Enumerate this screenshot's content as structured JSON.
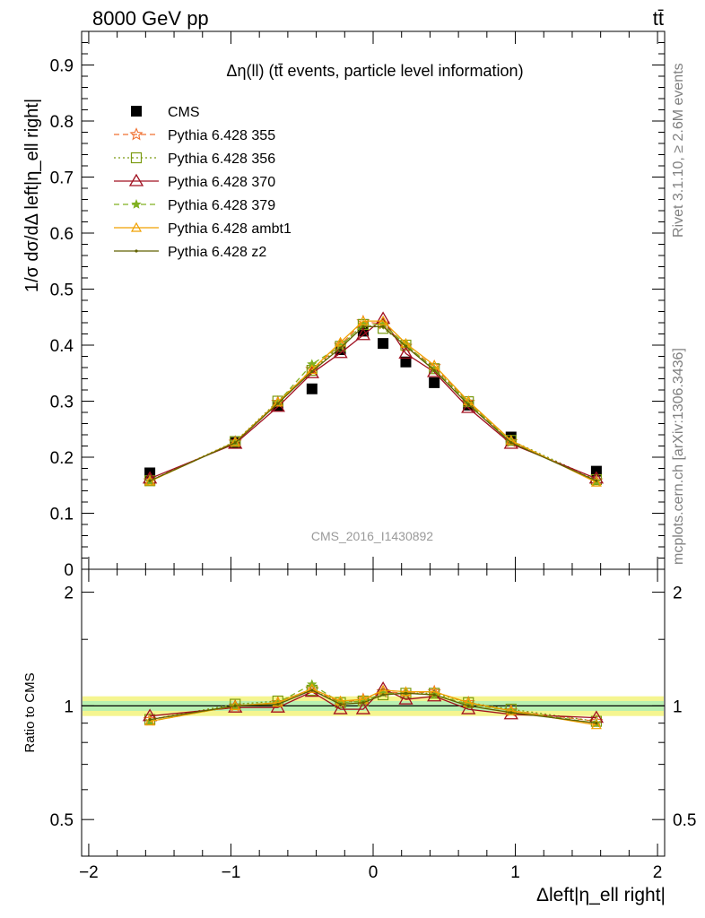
{
  "header": {
    "energy_label": "8000 GeV pp",
    "process_label": "tt̄"
  },
  "side_labels": {
    "rivet": "Rivet 3.1.10, ≥ 2.6M events",
    "source": "mcplots.cern.ch [arXiv:1306.3436]"
  },
  "chart_data": [
    {
      "type": "line",
      "panel": "main",
      "title": "Δη(ll) (tt̄ events, particle level information)",
      "ylabel": "1/σ dσ/dΔ left|η_ell right|",
      "xlabel": "",
      "watermark": "CMS_2016_I1430892",
      "xlim": [
        -2.05,
        2.05
      ],
      "ylim": [
        0,
        0.96
      ],
      "yticks": [
        0,
        0.1,
        0.2,
        0.3,
        0.4,
        0.5,
        0.6,
        0.7,
        0.8,
        0.9
      ],
      "ytick_labels": [
        "0",
        "0.1",
        "0.2",
        "0.3",
        "0.4",
        "0.5",
        "0.6",
        "0.7",
        "0.8",
        "0.9"
      ],
      "x": [
        -1.57,
        -0.97,
        -0.67,
        -0.43,
        -0.23,
        -0.07,
        0.07,
        0.23,
        0.43,
        0.67,
        0.97,
        1.57
      ],
      "series": [
        {
          "name": "CMS",
          "color": "#000000",
          "style": "data",
          "marker": "square",
          "values": [
            0.172,
            0.226,
            0.292,
            0.322,
            0.392,
            0.425,
            0.403,
            0.37,
            0.333,
            0.293,
            0.236,
            0.175
          ]
        },
        {
          "name": "Pythia 6.428 355",
          "color": "#f07030",
          "style": "dashed",
          "marker": "star",
          "values": [
            0.158,
            0.227,
            0.298,
            0.357,
            0.4,
            0.442,
            0.438,
            0.398,
            0.362,
            0.298,
            0.228,
            0.158
          ]
        },
        {
          "name": "Pythia 6.428 356",
          "color": "#7a9a10",
          "style": "dotted",
          "marker": "open-square",
          "values": [
            0.158,
            0.228,
            0.3,
            0.355,
            0.398,
            0.437,
            0.43,
            0.4,
            0.358,
            0.299,
            0.23,
            0.16
          ]
        },
        {
          "name": "Pythia 6.428 370",
          "color": "#a01020",
          "style": "solid",
          "marker": "open-triangle",
          "values": [
            0.162,
            0.224,
            0.29,
            0.35,
            0.386,
            0.418,
            0.447,
            0.385,
            0.352,
            0.288,
            0.224,
            0.162
          ]
        },
        {
          "name": "Pythia 6.428 379",
          "color": "#80b020",
          "style": "dashed",
          "marker": "small-star",
          "values": [
            0.157,
            0.227,
            0.298,
            0.366,
            0.398,
            0.437,
            0.437,
            0.401,
            0.357,
            0.296,
            0.228,
            0.157
          ]
        },
        {
          "name": "Pythia 6.428 ambt1",
          "color": "#f0a000",
          "style": "solid",
          "marker": "open-triangle-small",
          "values": [
            0.157,
            0.227,
            0.298,
            0.356,
            0.405,
            0.443,
            0.443,
            0.403,
            0.364,
            0.3,
            0.23,
            0.155
          ]
        },
        {
          "name": "Pythia 6.428 z2",
          "color": "#606000",
          "style": "solid",
          "marker": "dot",
          "values": [
            0.158,
            0.226,
            0.296,
            0.353,
            0.395,
            0.433,
            0.433,
            0.398,
            0.355,
            0.294,
            0.226,
            0.158
          ]
        }
      ]
    },
    {
      "type": "line",
      "panel": "ratio",
      "ylabel": "Ratio to CMS",
      "xlabel": "Δleft|η_ell right|",
      "xlim": [
        -2.05,
        2.05
      ],
      "ylim": [
        0.4,
        2.3
      ],
      "yscale": "log",
      "yticks": [
        0.5,
        1,
        2
      ],
      "ytick_labels": [
        "0.5",
        "1",
        "2"
      ],
      "xticks": [
        -2,
        -1,
        0,
        1,
        2
      ],
      "xtick_labels": [
        "−2",
        "−1",
        "0",
        "1",
        "2"
      ],
      "band_inner": [
        0.97,
        1.03
      ],
      "band_outer": [
        0.94,
        1.06
      ],
      "x": [
        -1.57,
        -0.97,
        -0.67,
        -0.43,
        -0.23,
        -0.07,
        0.07,
        0.23,
        0.43,
        0.67,
        0.97,
        1.57
      ],
      "series": [
        {
          "name": "Pythia 6.428 355",
          "values": [
            0.92,
            1.0,
            1.02,
            1.11,
            1.02,
            1.04,
            1.09,
            1.08,
            1.09,
            1.02,
            0.97,
            0.91
          ]
        },
        {
          "name": "Pythia 6.428 356",
          "values": [
            0.92,
            1.01,
            1.03,
            1.1,
            1.02,
            1.03,
            1.07,
            1.08,
            1.08,
            1.02,
            0.98,
            0.91
          ]
        },
        {
          "name": "Pythia 6.428 370",
          "values": [
            0.94,
            0.99,
            0.99,
            1.09,
            0.98,
            0.98,
            1.11,
            1.04,
            1.06,
            0.98,
            0.95,
            0.93
          ]
        },
        {
          "name": "Pythia 6.428 379",
          "values": [
            0.91,
            1.0,
            1.02,
            1.14,
            1.02,
            1.03,
            1.08,
            1.08,
            1.07,
            1.01,
            0.97,
            0.9
          ]
        },
        {
          "name": "Pythia 6.428 ambt1",
          "values": [
            0.91,
            1.0,
            1.02,
            1.11,
            1.03,
            1.04,
            1.1,
            1.09,
            1.09,
            1.02,
            0.97,
            0.89
          ]
        },
        {
          "name": "Pythia 6.428 z2",
          "values": [
            0.92,
            1.0,
            1.01,
            1.1,
            1.01,
            1.02,
            1.07,
            1.08,
            1.07,
            1.0,
            0.96,
            0.9
          ]
        }
      ]
    }
  ]
}
